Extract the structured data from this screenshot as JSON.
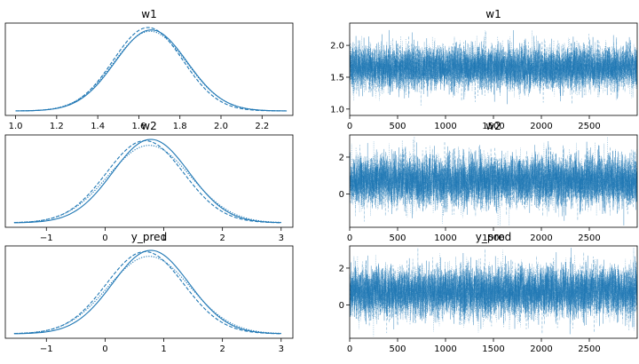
{
  "chart_data": [
    {
      "type": "line",
      "kind": "density",
      "title": "w1",
      "xlim": [
        0.95,
        2.35
      ],
      "xticks": [
        1.0,
        1.2,
        1.4,
        1.6,
        1.8,
        2.0,
        2.2
      ],
      "xtick_labels": [
        "1.0",
        "1.2",
        "1.4",
        "1.6",
        "1.8",
        "2.0",
        "2.2"
      ],
      "series": [
        {
          "style": "solid",
          "mean": 1.66,
          "sd": 0.175,
          "xrange": [
            1.0,
            2.32
          ]
        },
        {
          "style": "dashed",
          "mean": 1.645,
          "sd": 0.17,
          "xrange": [
            1.0,
            2.32
          ]
        },
        {
          "style": "dotted",
          "mean": 1.655,
          "sd": 0.178,
          "xrange": [
            1.0,
            2.32
          ]
        }
      ],
      "color": "#1f77b4",
      "yticks": false
    },
    {
      "type": "line",
      "kind": "trace",
      "title": "w1",
      "xlim": [
        0,
        3000
      ],
      "ylim": [
        0.9,
        2.35
      ],
      "xticks": [
        0,
        500,
        1000,
        1500,
        2000,
        2500
      ],
      "xtick_labels": [
        "0",
        "500",
        "1000",
        "1500",
        "2000",
        "2500"
      ],
      "yticks": [
        1.0,
        1.5,
        2.0
      ],
      "ytick_labels": [
        "1.0",
        "1.5",
        "2.0"
      ],
      "draws": 3000,
      "chains": 3,
      "mean": 1.65,
      "sd": 0.17,
      "color": "#1f77b4"
    },
    {
      "type": "line",
      "kind": "density",
      "title": "w2",
      "xlim": [
        -1.7,
        3.2
      ],
      "xticks": [
        -1,
        0,
        1,
        2,
        3
      ],
      "xtick_labels": [
        "−1",
        "0",
        "1",
        "2",
        "3"
      ],
      "series": [
        {
          "style": "solid",
          "mean": 0.78,
          "sd": 0.65,
          "xrange": [
            -1.55,
            3.0
          ]
        },
        {
          "style": "dashed",
          "mean": 0.68,
          "sd": 0.66,
          "xrange": [
            -1.55,
            3.0
          ]
        },
        {
          "style": "dotted",
          "mean": 0.75,
          "sd": 0.7,
          "xrange": [
            -1.55,
            3.0
          ]
        }
      ],
      "color": "#1f77b4",
      "yticks": false
    },
    {
      "type": "line",
      "kind": "trace",
      "title": "w2",
      "xlim": [
        0,
        3000
      ],
      "ylim": [
        -1.8,
        3.2
      ],
      "xticks": [
        0,
        500,
        1000,
        1500,
        2000,
        2500
      ],
      "xtick_labels": [
        "0",
        "500",
        "1000",
        "1500",
        "2000",
        "2500"
      ],
      "yticks": [
        0,
        2
      ],
      "ytick_labels": [
        "0",
        "2"
      ],
      "draws": 3000,
      "chains": 3,
      "mean": 0.72,
      "sd": 0.67,
      "color": "#1f77b4"
    },
    {
      "type": "line",
      "kind": "density",
      "title": "y_pred",
      "xlim": [
        -1.7,
        3.2
      ],
      "xticks": [
        -1,
        0,
        1,
        2,
        3
      ],
      "xtick_labels": [
        "−1",
        "0",
        "1",
        "2",
        "3"
      ],
      "series": [
        {
          "style": "solid",
          "mean": 0.78,
          "sd": 0.65,
          "xrange": [
            -1.55,
            3.0
          ]
        },
        {
          "style": "dashed",
          "mean": 0.68,
          "sd": 0.66,
          "xrange": [
            -1.55,
            3.0
          ]
        },
        {
          "style": "dotted",
          "mean": 0.75,
          "sd": 0.7,
          "xrange": [
            -1.55,
            3.0
          ]
        }
      ],
      "color": "#1f77b4",
      "yticks": false
    },
    {
      "type": "line",
      "kind": "trace",
      "title": "y_pred",
      "xlim": [
        0,
        3000
      ],
      "ylim": [
        -1.8,
        3.2
      ],
      "xticks": [
        0,
        500,
        1000,
        1500,
        2000,
        2500
      ],
      "xtick_labels": [
        "0",
        "500",
        "1000",
        "1500",
        "2000",
        "2500"
      ],
      "yticks": [
        0,
        2
      ],
      "ytick_labels": [
        "0",
        "2"
      ],
      "draws": 3000,
      "chains": 3,
      "mean": 0.72,
      "sd": 0.67,
      "color": "#1f77b4"
    }
  ]
}
